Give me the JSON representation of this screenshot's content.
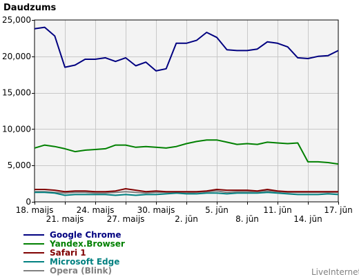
{
  "chart_data": {
    "type": "line",
    "title": "Daudzums",
    "source": "LiveInternet",
    "ylim": [
      0,
      25000
    ],
    "y_ticks": [
      0,
      5000,
      10000,
      15000,
      20000,
      25000
    ],
    "y_tick_labels": [
      "0",
      "5,000",
      "10,000",
      "15,000",
      "20,000",
      "25,000"
    ],
    "x": [
      "18. maijs",
      "19. maijs",
      "20. maijs",
      "21. maijs",
      "22. maijs",
      "23. maijs",
      "24. maijs",
      "25. maijs",
      "26. maijs",
      "27. maijs",
      "28. maijs",
      "29. maijs",
      "30. maijs",
      "31. maijs",
      "1. jūn",
      "2. jūn",
      "3. jūn",
      "4. jūn",
      "5. jūn",
      "6. jūn",
      "7. jūn",
      "8. jūn",
      "9. jūn",
      "10. jūn",
      "11. jūn",
      "12. jūn",
      "13. jūn",
      "14. jūn",
      "15. jūn",
      "16. jūn",
      "17. jūn"
    ],
    "x_tick_labels": [
      {
        "index": 0,
        "label": "18. maijs",
        "row": 1
      },
      {
        "index": 3,
        "label": "21. maijs",
        "row": 2
      },
      {
        "index": 6,
        "label": "24. maijs",
        "row": 1
      },
      {
        "index": 9,
        "label": "27. maijs",
        "row": 2
      },
      {
        "index": 12,
        "label": "30. maijs",
        "row": 1
      },
      {
        "index": 15,
        "label": "2. jūn",
        "row": 2
      },
      {
        "index": 18,
        "label": "5. jūn",
        "row": 1
      },
      {
        "index": 21,
        "label": "8. jūn",
        "row": 2
      },
      {
        "index": 24,
        "label": "11. jūn",
        "row": 1
      },
      {
        "index": 27,
        "label": "14. jūn",
        "row": 2
      },
      {
        "index": 30,
        "label": "17. jūn",
        "row": 1
      }
    ],
    "grid": true,
    "legend_position": "bottom-left",
    "series": [
      {
        "name": "Google Chrome",
        "color": "#000080",
        "values": [
          23800,
          24000,
          22800,
          18500,
          18800,
          19600,
          19600,
          19800,
          19300,
          19800,
          18700,
          19200,
          18000,
          18300,
          21800,
          21800,
          22200,
          23300,
          22600,
          20900,
          20800,
          20800,
          21000,
          22000,
          21800,
          21300,
          19800,
          19700,
          20000,
          20100,
          20800
        ]
      },
      {
        "name": "Yandex.Browser",
        "color": "#008000",
        "values": [
          7400,
          7800,
          7600,
          7300,
          6900,
          7100,
          7200,
          7300,
          7800,
          7800,
          7500,
          7600,
          7500,
          7400,
          7600,
          8000,
          8300,
          8500,
          8500,
          8200,
          7900,
          8000,
          7900,
          8200,
          8100,
          8000,
          8100,
          5500,
          5500,
          5400,
          5200
        ]
      },
      {
        "name": "Safari 1",
        "color": "#800000",
        "values": [
          1700,
          1700,
          1600,
          1400,
          1500,
          1500,
          1400,
          1400,
          1500,
          1800,
          1600,
          1400,
          1500,
          1400,
          1400,
          1400,
          1400,
          1500,
          1700,
          1600,
          1600,
          1600,
          1500,
          1700,
          1500,
          1400,
          1400,
          1400,
          1400,
          1400,
          1400
        ]
      },
      {
        "name": "Microsoft Edge",
        "color": "#008080",
        "values": [
          1300,
          1300,
          1200,
          900,
          1000,
          1000,
          1000,
          1000,
          900,
          1000,
          900,
          1000,
          1000,
          1100,
          1200,
          1100,
          1100,
          1200,
          1200,
          1100,
          1200,
          1200,
          1200,
          1300,
          1200,
          1100,
          1000,
          1000,
          1000,
          1100,
          1000
        ]
      },
      {
        "name": "Opera (Blink)",
        "color": "#808080",
        "values": [
          1400,
          1400,
          1300,
          1200,
          1300,
          1300,
          1200,
          1200,
          1300,
          1400,
          1300,
          1200,
          1300,
          1300,
          1300,
          1200,
          1300,
          1400,
          1500,
          1300,
          1400,
          1400,
          1400,
          1500,
          1400,
          1300,
          1300,
          1300,
          1300,
          1300,
          1300
        ]
      }
    ]
  }
}
